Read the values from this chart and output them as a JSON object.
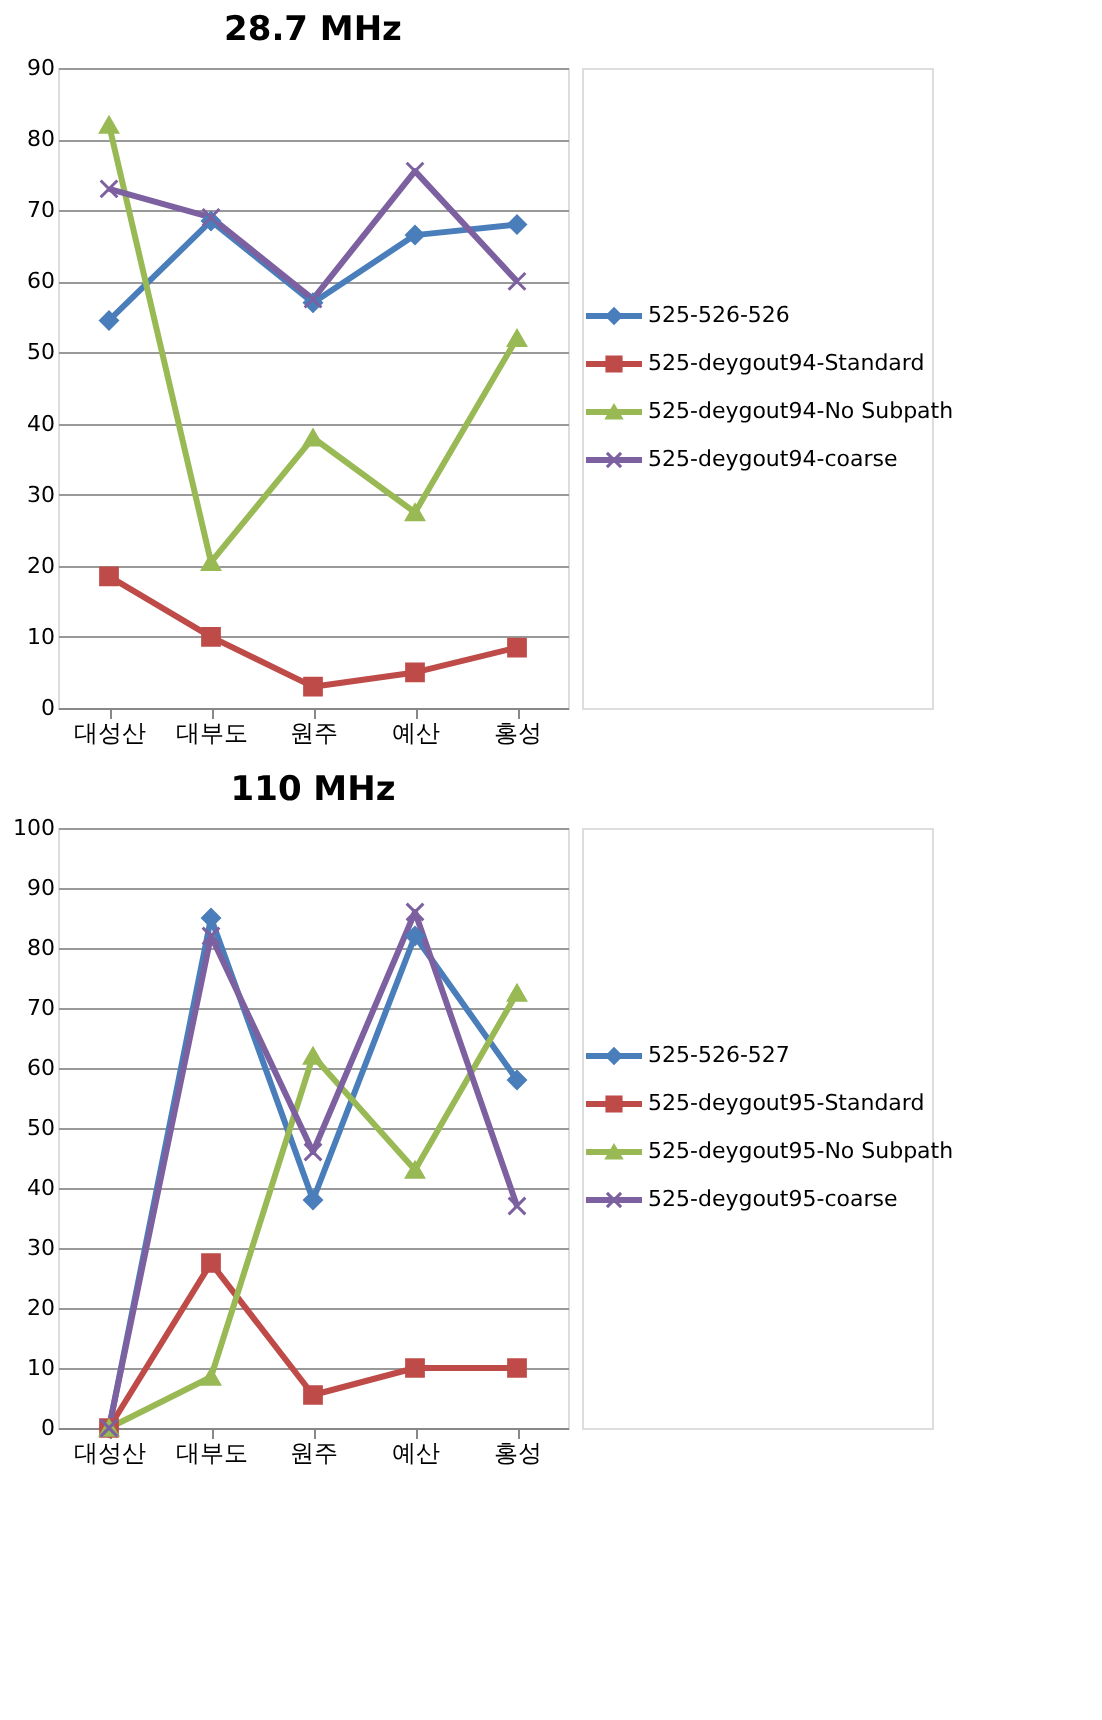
{
  "chart_data": [
    {
      "type": "line",
      "title": "28.7 MHz",
      "categories": [
        "대성산",
        "대부도",
        "원주",
        "예산",
        "홍성"
      ],
      "ylim": [
        0,
        90
      ],
      "yticks": [
        0,
        10,
        20,
        30,
        40,
        50,
        60,
        70,
        80,
        90
      ],
      "grid": "y",
      "legend": "right",
      "series": [
        {
          "name": "525-526-526",
          "color": "#4a7ebb",
          "marker": "diamond",
          "values": [
            54.5,
            68.5,
            57,
            66.5,
            68
          ]
        },
        {
          "name": "525-deygout94-Standard",
          "color": "#be4b48",
          "marker": "square",
          "values": [
            18.5,
            10,
            3,
            5,
            8.5
          ]
        },
        {
          "name": "525-deygout94-No Subpath",
          "color": "#98b954",
          "marker": "triangle",
          "values": [
            82,
            20.5,
            38,
            27.5,
            52
          ]
        },
        {
          "name": "525-deygout94-coarse",
          "color": "#7d60a0",
          "marker": "cross",
          "values": [
            73,
            69,
            57.5,
            75.5,
            60
          ]
        }
      ]
    },
    {
      "type": "line",
      "title": "110 MHz",
      "categories": [
        "대성산",
        "대부도",
        "원주",
        "예산",
        "홍성"
      ],
      "ylim": [
        0,
        100
      ],
      "yticks": [
        0,
        10,
        20,
        30,
        40,
        50,
        60,
        70,
        80,
        90,
        100
      ],
      "grid": "y",
      "legend": "right",
      "series": [
        {
          "name": "525-526-527",
          "color": "#4a7ebb",
          "marker": "diamond",
          "values": [
            0,
            85,
            38,
            82,
            58
          ]
        },
        {
          "name": "525-deygout95-Standard",
          "color": "#be4b48",
          "marker": "square",
          "values": [
            0,
            27.5,
            5.5,
            10,
            10
          ]
        },
        {
          "name": "525-deygout95-No Subpath",
          "color": "#98b954",
          "marker": "triangle",
          "values": [
            0,
            8.5,
            62,
            43,
            72.5
          ]
        },
        {
          "name": "525-deygout95-coarse",
          "color": "#7d60a0",
          "marker": "cross",
          "values": [
            0,
            82,
            46,
            86,
            37
          ]
        }
      ]
    }
  ]
}
